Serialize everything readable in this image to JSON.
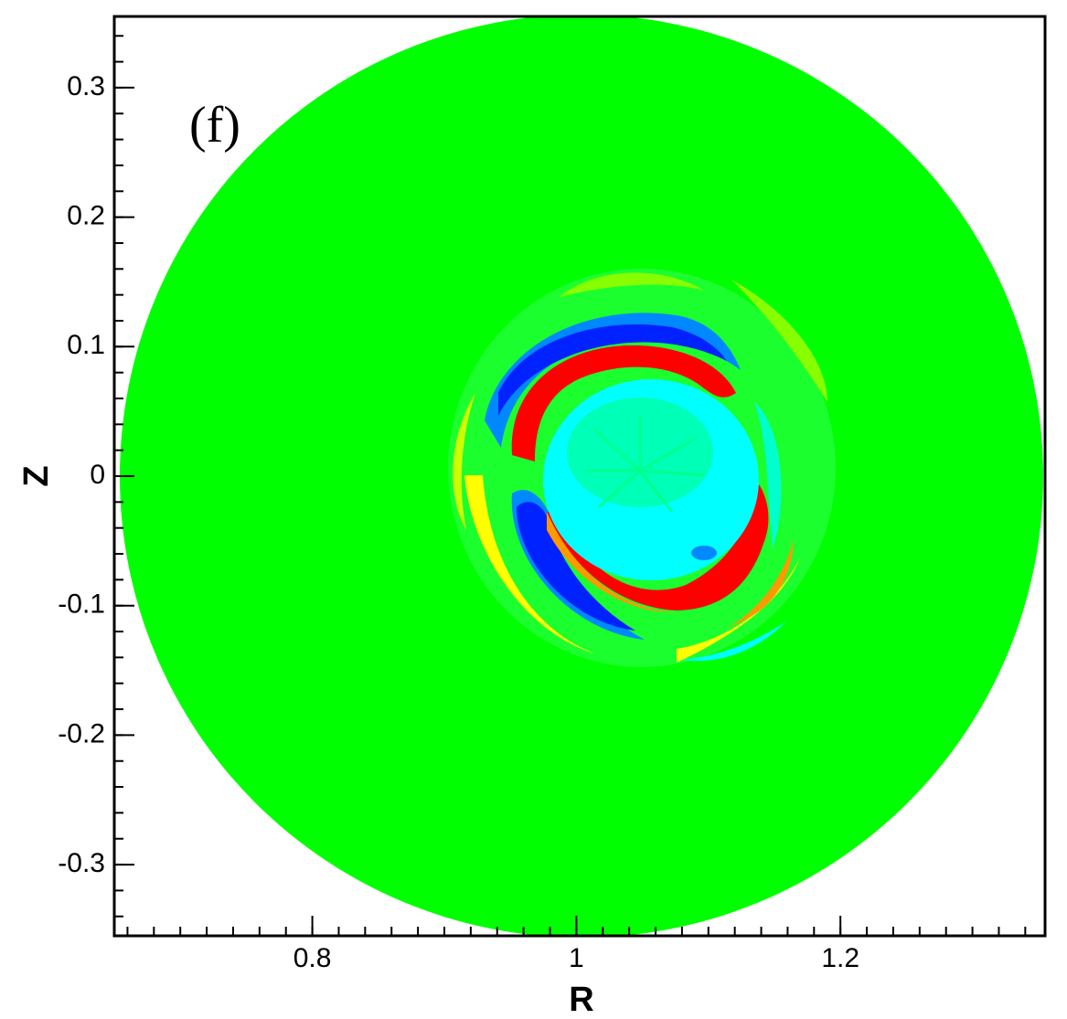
{
  "chart_data": {
    "type": "heatmap",
    "panel_label": "(f)",
    "xlabel": "R",
    "ylabel": "Z",
    "xlim": [
      0.65,
      1.355
    ],
    "ylim": [
      -0.355,
      0.355
    ],
    "x_ticks": [
      {
        "value": 0.8,
        "label": "0.8"
      },
      {
        "value": 1.0,
        "label": "1"
      },
      {
        "value": 1.2,
        "label": "1.2"
      }
    ],
    "y_ticks": [
      {
        "value": 0.3,
        "label": "0.3"
      },
      {
        "value": 0.2,
        "label": "0.2"
      },
      {
        "value": 0.1,
        "label": "0.1"
      },
      {
        "value": 0.0,
        "label": "0"
      },
      {
        "value": -0.1,
        "label": "-0.1"
      },
      {
        "value": -0.2,
        "label": "-0.2"
      },
      {
        "value": -0.3,
        "label": "-0.3"
      }
    ],
    "x_minor_step": 0.02,
    "y_minor_step": 0.02,
    "domain": {
      "center_r": 1.0,
      "center_z": 0.0,
      "radius": 0.355
    },
    "colors": {
      "background": "#00ff00",
      "strong_negative": "#0022ff",
      "negative": "#0088ff",
      "weak_negative": "#00ffff",
      "near_zero_low": "#00ff88",
      "near_zero_high": "#88ff00",
      "weak_positive": "#ffff00",
      "positive": "#ff9900",
      "strong_positive": "#ff0000"
    }
  }
}
